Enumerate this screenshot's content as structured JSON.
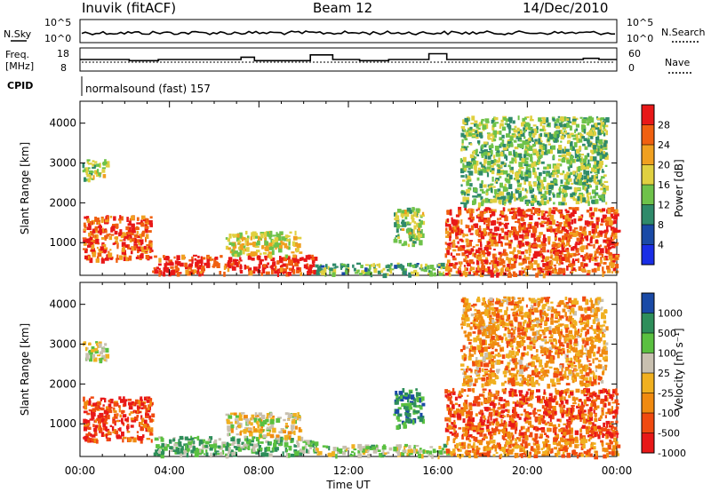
{
  "header": {
    "station": "Inuvik (fitACF)",
    "beam": "Beam 12",
    "date": "14/Dec/2010"
  },
  "sky_panel": {
    "left_label": "N.Sky",
    "right_label": "N.Search",
    "left_ticks": [
      "10^5",
      "10^0"
    ],
    "right_ticks": [
      "10^5",
      "10^0"
    ]
  },
  "freq_panel": {
    "left_label_line1": "Freq.",
    "left_label_line2": "[MHz]",
    "right_label": "Nave",
    "left_ticks": [
      "18",
      "8"
    ],
    "right_ticks": [
      "60",
      "0"
    ]
  },
  "cpid": {
    "label": "CPID",
    "value": "normalsound (fast) 157"
  },
  "colors": {
    "power": [
      "#1a2ee6",
      "#1a4aa6",
      "#2f8a6a",
      "#6ec24a",
      "#e0d040",
      "#f0a020",
      "#f06010",
      "#e81818"
    ],
    "velocity": [
      "#e81818",
      "#f04a10",
      "#f08a10",
      "#f0b020",
      "#c8c0b0",
      "#5ac040",
      "#2e8e5a",
      "#1a4aa6"
    ]
  },
  "chart_data": [
    {
      "type": "heatmap",
      "name": "power",
      "xlabel": "",
      "ylabel": "Slant Range [km]",
      "x_ticks": [
        "00:00",
        "04:00",
        "08:00",
        "12:00",
        "16:00",
        "20:00",
        "00:00"
      ],
      "y_ticks": [
        "1000",
        "2000",
        "3000",
        "4000"
      ],
      "xlim": [
        "00:00",
        "24:00"
      ],
      "ylim": [
        180,
        4550
      ],
      "colorbar": {
        "label": "Power [dB]",
        "ticks": [
          "4",
          "8",
          "12",
          "16",
          "20",
          "24",
          "28"
        ],
        "range": [
          0,
          32
        ]
      },
      "regions": [
        {
          "t": [
            0.1,
            3.2
          ],
          "r": [
            600,
            1700
          ],
          "level": 0.85
        },
        {
          "t": [
            3.2,
            10.5
          ],
          "r": [
            250,
            700
          ],
          "level": 0.9
        },
        {
          "t": [
            6.5,
            9.8
          ],
          "r": [
            700,
            1300
          ],
          "level": 0.55
        },
        {
          "t": [
            10.5,
            16.5
          ],
          "r": [
            230,
            500
          ],
          "level": 0.4
        },
        {
          "t": [
            14.0,
            15.3
          ],
          "r": [
            950,
            1900
          ],
          "level": 0.5
        },
        {
          "t": [
            16.3,
            24.0
          ],
          "r": [
            700,
            1900
          ],
          "level": 0.85
        },
        {
          "t": [
            16.3,
            24.0
          ],
          "r": [
            230,
            700
          ],
          "level": 0.8
        },
        {
          "t": [
            0.1,
            1.2
          ],
          "r": [
            2600,
            3100
          ],
          "level": 0.5
        },
        {
          "t": [
            17.0,
            23.5
          ],
          "r": [
            2000,
            4200
          ],
          "level": 0.45
        }
      ]
    },
    {
      "type": "heatmap",
      "name": "velocity",
      "xlabel": "Time UT",
      "ylabel": "Slant Range [km]",
      "x_ticks": [
        "00:00",
        "04:00",
        "08:00",
        "12:00",
        "16:00",
        "20:00",
        "00:00"
      ],
      "y_ticks": [
        "1000",
        "2000",
        "3000",
        "4000"
      ],
      "xlim": [
        "00:00",
        "24:00"
      ],
      "ylim": [
        180,
        4550
      ],
      "colorbar": {
        "label": "Velocity [m s⁻¹]",
        "ticks": [
          "1000",
          "500",
          "100",
          "25",
          "-25",
          "-100",
          "-500",
          "-1000"
        ],
        "range": [
          -1000,
          1000
        ]
      },
      "regions": [
        {
          "t": [
            0.1,
            3.2
          ],
          "r": [
            600,
            1700
          ],
          "level": 0.15
        },
        {
          "t": [
            3.2,
            10.5
          ],
          "r": [
            250,
            700
          ],
          "level": 0.7
        },
        {
          "t": [
            6.5,
            9.8
          ],
          "r": [
            700,
            1300
          ],
          "level": 0.5
        },
        {
          "t": [
            10.5,
            16.5
          ],
          "r": [
            230,
            500
          ],
          "level": 0.6
        },
        {
          "t": [
            14.0,
            15.3
          ],
          "r": [
            950,
            1900
          ],
          "level": 0.8
        },
        {
          "t": [
            16.3,
            24.0
          ],
          "r": [
            700,
            1900
          ],
          "level": 0.2
        },
        {
          "t": [
            16.3,
            24.0
          ],
          "r": [
            230,
            700
          ],
          "level": 0.3
        },
        {
          "t": [
            0.1,
            1.2
          ],
          "r": [
            2600,
            3100
          ],
          "level": 0.55
        },
        {
          "t": [
            17.0,
            23.5
          ],
          "r": [
            2000,
            4200
          ],
          "level": 0.35
        }
      ]
    }
  ]
}
